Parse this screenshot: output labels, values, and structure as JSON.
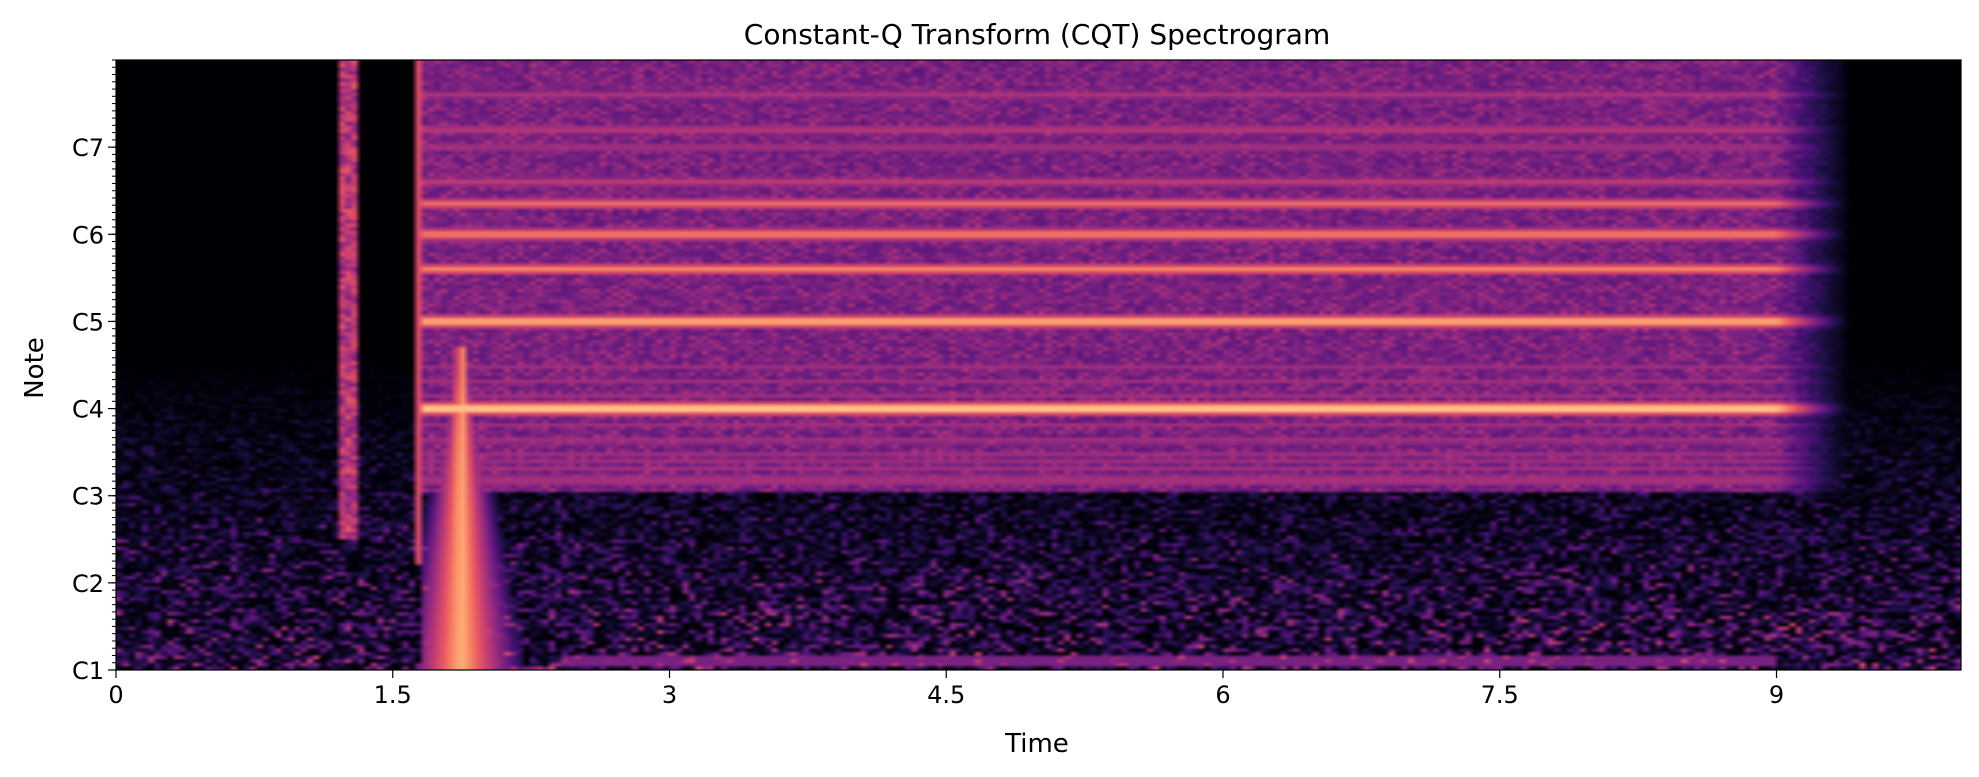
{
  "chart_data": {
    "type": "heatmap",
    "title": "Constant-Q Transform (CQT) Spectrogram",
    "xlabel": "Time",
    "ylabel": "Note",
    "xlim": [
      0,
      10.0
    ],
    "x_ticks": [
      0,
      1.5,
      3,
      4.5,
      6,
      7.5,
      9
    ],
    "x_tick_labels": [
      "0",
      "1.5",
      "3",
      "4.5",
      "6",
      "7.5",
      "9"
    ],
    "ylim_octaves": [
      1,
      8.0
    ],
    "y_ticks": [
      1,
      2,
      3,
      4,
      5,
      6,
      7
    ],
    "y_tick_labels": [
      "C1",
      "C2",
      "C3",
      "C4",
      "C5",
      "C6",
      "C7"
    ],
    "colormap": "magma",
    "colormap_stops": [
      "#000004",
      "#1c1044",
      "#4f127b",
      "#812581",
      "#b5367a",
      "#e55064",
      "#fb8761",
      "#fec287",
      "#fcfdbf"
    ],
    "events": [
      {
        "name": "click",
        "time": 1.25
      },
      {
        "name": "onset",
        "time": 1.65
      },
      {
        "name": "sustain_end",
        "time": 9.0
      },
      {
        "name": "release_end",
        "time": 9.4
      }
    ],
    "harmonic_bands": [
      {
        "note": "C4",
        "octave": 4.0,
        "intensity": 1.0
      },
      {
        "note": "C5",
        "octave": 5.0,
        "intensity": 0.92
      },
      {
        "note": "G5",
        "octave": 5.6,
        "intensity": 0.78
      },
      {
        "note": "C6",
        "octave": 6.0,
        "intensity": 0.8
      },
      {
        "note": "E6",
        "octave": 6.35,
        "intensity": 0.72
      },
      {
        "note": "G6",
        "octave": 6.6,
        "intensity": 0.55
      },
      {
        "note": "C7",
        "octave": 7.0,
        "intensity": 0.5
      },
      {
        "note": "E7",
        "octave": 7.2,
        "intensity": 0.55
      },
      {
        "note": "G7",
        "octave": 7.6,
        "intensity": 0.5
      },
      {
        "note": "C3",
        "octave": 3.2,
        "intensity": 0.5
      },
      {
        "note": "C#3",
        "octave": 3.4,
        "intensity": 0.45
      },
      {
        "note": "E3",
        "octave": 3.6,
        "intensity": 0.4
      }
    ],
    "low_drone": {
      "octave": 1.1,
      "intensity": 0.35,
      "start": 2.4,
      "end": 9.0
    }
  }
}
